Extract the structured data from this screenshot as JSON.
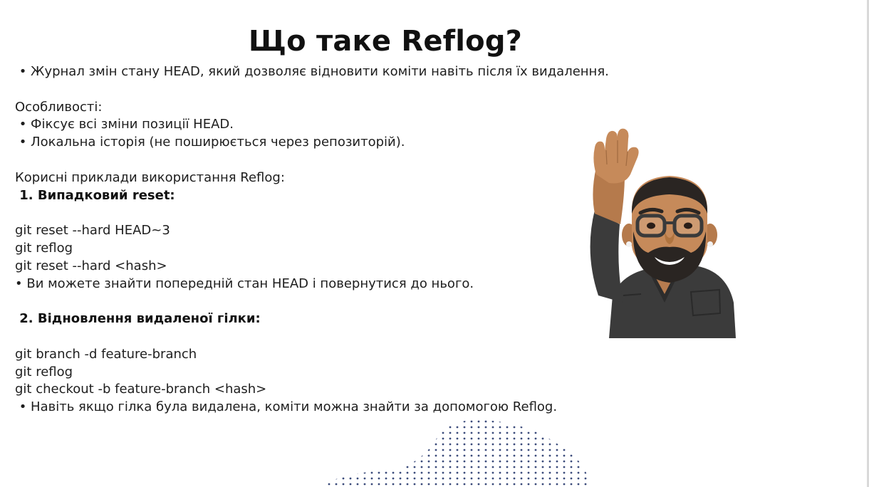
{
  "title": "Що таке Reflog?",
  "lines": [
    " • Журнал змін стану HEAD, який дозволяє відновити коміти навіть після їх видалення.",
    "",
    "Особливості:",
    " • Фіксує всі зміни позиції HEAD.",
    " • Локальна історія (не поширюється через репозиторій).",
    "",
    "Корисні приклади використання Reflog:",
    " 1. Випадковий reset:",
    "",
    "git reset --hard HEAD~3",
    "git reflog",
    "git reset --hard <hash>",
    "• Ви можете знайти попередній стан HEAD і повернутися до нього.",
    "",
    " 2. Відновлення видаленої гілки:",
    "",
    "git branch -d feature-branch",
    "git reflog",
    "git checkout -b feature-branch <hash>",
    " • Навіть якщо гілка була видалена, коміти можна знайти за допомогою Reflog."
  ],
  "colors": {
    "text": "#1e1e1e",
    "title": "#111111",
    "skin": "#c68a5a",
    "beard": "#2a2522",
    "shirt": "#3b3b3b",
    "dots": "#3a4a7a"
  }
}
